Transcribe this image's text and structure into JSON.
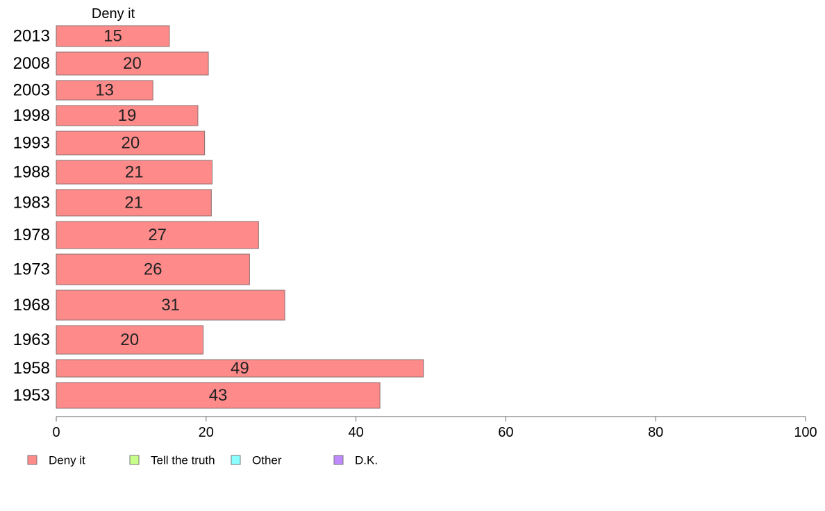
{
  "chart_data": {
    "type": "bar",
    "orientation": "horizontal",
    "panel_title": "Deny it",
    "categories": [
      "2013",
      "2008",
      "2003",
      "1998",
      "1993",
      "1988",
      "1983",
      "1978",
      "1973",
      "1968",
      "1963",
      "1958",
      "1953"
    ],
    "series": [
      {
        "name": "Deny it",
        "color": "#ff8a8a",
        "values": [
          15.1,
          20.3,
          12.9,
          18.9,
          19.8,
          20.8,
          20.7,
          27.0,
          25.8,
          30.5,
          19.6,
          49.0,
          43.2
        ],
        "labels": [
          "15",
          "20",
          "13",
          "19",
          "20",
          "21",
          "21",
          "27",
          "26",
          "31",
          "20",
          "49",
          "43"
        ]
      }
    ],
    "xlim": [
      0,
      100
    ],
    "xticks": [
      "0",
      "20",
      "40",
      "60",
      "80",
      "100"
    ],
    "legend": {
      "placement": "bottom-left",
      "items": [
        {
          "label": "Deny it",
          "color": "#ff8a8a"
        },
        {
          "label": "Tell the truth",
          "color": "#c8ff8a"
        },
        {
          "label": "Other",
          "color": "#8affff"
        },
        {
          "label": "D.K.",
          "color": "#c08aff"
        }
      ]
    }
  }
}
